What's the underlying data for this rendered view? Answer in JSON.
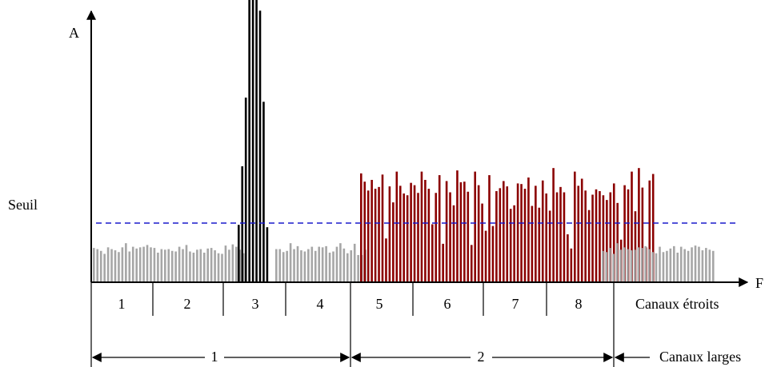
{
  "axes": {
    "y_label": "A",
    "x_label": "F"
  },
  "threshold": {
    "label": "Seuil",
    "color": "#1a1acc",
    "style": "dashed"
  },
  "colors": {
    "noise_bar": "#a6a6a6",
    "interference_bar": "#000000",
    "occupied_bar": "#8b0000",
    "axis": "#000000"
  },
  "narrow_channels": {
    "row_label": "Canaux étroits",
    "labels": [
      "1",
      "2",
      "3",
      "4",
      "5",
      "6",
      "7",
      "8"
    ]
  },
  "wide_channels": {
    "row_label": "Canaux larges",
    "labels": [
      "1",
      "2"
    ]
  },
  "spectrum": {
    "noise_left": [
      0.58,
      0.56,
      0.53,
      0.48,
      0.59,
      0.56,
      0.54,
      0.51,
      0.59,
      0.66,
      0.52,
      0.6,
      0.57,
      0.59,
      0.6,
      0.63,
      0.59,
      0.58,
      0.5,
      0.56,
      0.55,
      0.56,
      0.53,
      0.52,
      0.6,
      0.56,
      0.63,
      0.52,
      0.5,
      0.55,
      0.56,
      0.5,
      0.57,
      0.58,
      0.54,
      0.49,
      0.48,
      0.62,
      0.55,
      0.64,
      0.6,
      0.55,
      0.49
    ],
    "black_peak": [
      0.97,
      1.96,
      3.12,
      4.87,
      8.05,
      6.23,
      4.59,
      3.05,
      0.93
    ],
    "noise_mid": [
      0.56,
      0.56,
      0.51,
      0.53,
      0.66,
      0.56,
      0.61,
      0.54,
      0.52,
      0.56,
      0.6,
      0.53,
      0.6,
      0.59,
      0.61,
      0.5,
      0.52,
      0.6,
      0.66,
      0.57,
      0.49,
      0.54,
      0.65,
      0.46,
      0.46,
      0.55
    ],
    "red_block": [
      1.84,
      1.7,
      1.55,
      1.73,
      1.58,
      1.61,
      1.82,
      0.74,
      1.62,
      1.35,
      1.87,
      1.63,
      1.5,
      1.47,
      1.68,
      1.64,
      1.51,
      1.87,
      1.73,
      1.58,
      0.98,
      1.51,
      1.81,
      0.65,
      1.71,
      1.52,
      1.3,
      1.89,
      1.69,
      1.7,
      1.53,
      0.63,
      1.87,
      1.64,
      1.33,
      0.87,
      1.81,
      0.95,
      1.54,
      1.59,
      1.71,
      1.62,
      1.24,
      1.3,
      1.67,
      1.66,
      1.58,
      1.77,
      1.29,
      1.63,
      1.26,
      1.72,
      1.5,
      1.21,
      1.93,
      1.52,
      1.61,
      1.52,
      0.81,
      0.57,
      1.87,
      1.63,
      1.75,
      1.55,
      1.22,
      1.48,
      1.57,
      1.54,
      1.47,
      1.39,
      1.52,
      1.67,
      1.34,
      0.72,
      1.64,
      1.57,
      1.87,
      1.2,
      1.93,
      1.6,
      0.59,
      1.72,
      1.83
    ],
    "noise_right": [
      0.53,
      0.51,
      0.58,
      0.48,
      0.66,
      0.55,
      0.59,
      0.56,
      0.54,
      0.55,
      0.59,
      0.58,
      0.61,
      0.56,
      0.51,
      0.49,
      0.6,
      0.51,
      0.53,
      0.57,
      0.61,
      0.5,
      0.6,
      0.56,
      0.53,
      0.59,
      0.62,
      0.6,
      0.54,
      0.58,
      0.55,
      0.53
    ]
  }
}
